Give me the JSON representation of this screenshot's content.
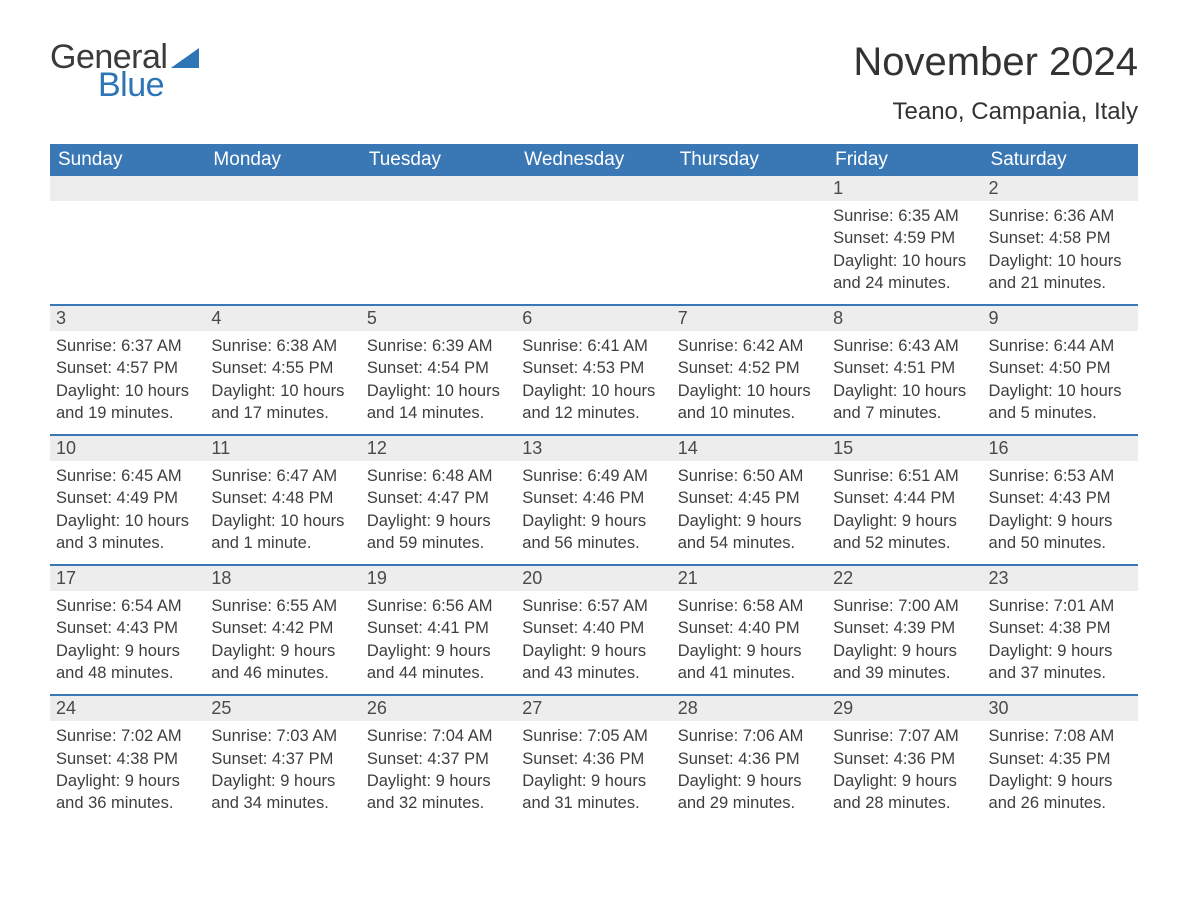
{
  "brand": {
    "word1": "General",
    "word2": "Blue",
    "color_text": "#3b3b3b",
    "color_accent": "#2e75b6"
  },
  "title": "November 2024",
  "location": "Teano, Campania, Italy",
  "theme": {
    "header_bg": "#3a78b5",
    "header_text": "#ffffff",
    "row_stripe": "#ededed",
    "row_border": "#3a78b5",
    "body_text": "#3e3e3e",
    "page_bg": "#ffffff",
    "title_fontsize": 40,
    "location_fontsize": 24,
    "dayheader_fontsize": 19,
    "cell_fontsize": 16.5
  },
  "day_names": [
    "Sunday",
    "Monday",
    "Tuesday",
    "Wednesday",
    "Thursday",
    "Friday",
    "Saturday"
  ],
  "weeks": [
    [
      {
        "empty": true
      },
      {
        "empty": true
      },
      {
        "empty": true
      },
      {
        "empty": true
      },
      {
        "empty": true
      },
      {
        "n": "1",
        "sunrise": "Sunrise: 6:35 AM",
        "sunset": "Sunset: 4:59 PM",
        "dl1": "Daylight: 10 hours",
        "dl2": "and 24 minutes."
      },
      {
        "n": "2",
        "sunrise": "Sunrise: 6:36 AM",
        "sunset": "Sunset: 4:58 PM",
        "dl1": "Daylight: 10 hours",
        "dl2": "and 21 minutes."
      }
    ],
    [
      {
        "n": "3",
        "sunrise": "Sunrise: 6:37 AM",
        "sunset": "Sunset: 4:57 PM",
        "dl1": "Daylight: 10 hours",
        "dl2": "and 19 minutes."
      },
      {
        "n": "4",
        "sunrise": "Sunrise: 6:38 AM",
        "sunset": "Sunset: 4:55 PM",
        "dl1": "Daylight: 10 hours",
        "dl2": "and 17 minutes."
      },
      {
        "n": "5",
        "sunrise": "Sunrise: 6:39 AM",
        "sunset": "Sunset: 4:54 PM",
        "dl1": "Daylight: 10 hours",
        "dl2": "and 14 minutes."
      },
      {
        "n": "6",
        "sunrise": "Sunrise: 6:41 AM",
        "sunset": "Sunset: 4:53 PM",
        "dl1": "Daylight: 10 hours",
        "dl2": "and 12 minutes."
      },
      {
        "n": "7",
        "sunrise": "Sunrise: 6:42 AM",
        "sunset": "Sunset: 4:52 PM",
        "dl1": "Daylight: 10 hours",
        "dl2": "and 10 minutes."
      },
      {
        "n": "8",
        "sunrise": "Sunrise: 6:43 AM",
        "sunset": "Sunset: 4:51 PM",
        "dl1": "Daylight: 10 hours",
        "dl2": "and 7 minutes."
      },
      {
        "n": "9",
        "sunrise": "Sunrise: 6:44 AM",
        "sunset": "Sunset: 4:50 PM",
        "dl1": "Daylight: 10 hours",
        "dl2": "and 5 minutes."
      }
    ],
    [
      {
        "n": "10",
        "sunrise": "Sunrise: 6:45 AM",
        "sunset": "Sunset: 4:49 PM",
        "dl1": "Daylight: 10 hours",
        "dl2": "and 3 minutes."
      },
      {
        "n": "11",
        "sunrise": "Sunrise: 6:47 AM",
        "sunset": "Sunset: 4:48 PM",
        "dl1": "Daylight: 10 hours",
        "dl2": "and 1 minute."
      },
      {
        "n": "12",
        "sunrise": "Sunrise: 6:48 AM",
        "sunset": "Sunset: 4:47 PM",
        "dl1": "Daylight: 9 hours",
        "dl2": "and 59 minutes."
      },
      {
        "n": "13",
        "sunrise": "Sunrise: 6:49 AM",
        "sunset": "Sunset: 4:46 PM",
        "dl1": "Daylight: 9 hours",
        "dl2": "and 56 minutes."
      },
      {
        "n": "14",
        "sunrise": "Sunrise: 6:50 AM",
        "sunset": "Sunset: 4:45 PM",
        "dl1": "Daylight: 9 hours",
        "dl2": "and 54 minutes."
      },
      {
        "n": "15",
        "sunrise": "Sunrise: 6:51 AM",
        "sunset": "Sunset: 4:44 PM",
        "dl1": "Daylight: 9 hours",
        "dl2": "and 52 minutes."
      },
      {
        "n": "16",
        "sunrise": "Sunrise: 6:53 AM",
        "sunset": "Sunset: 4:43 PM",
        "dl1": "Daylight: 9 hours",
        "dl2": "and 50 minutes."
      }
    ],
    [
      {
        "n": "17",
        "sunrise": "Sunrise: 6:54 AM",
        "sunset": "Sunset: 4:43 PM",
        "dl1": "Daylight: 9 hours",
        "dl2": "and 48 minutes."
      },
      {
        "n": "18",
        "sunrise": "Sunrise: 6:55 AM",
        "sunset": "Sunset: 4:42 PM",
        "dl1": "Daylight: 9 hours",
        "dl2": "and 46 minutes."
      },
      {
        "n": "19",
        "sunrise": "Sunrise: 6:56 AM",
        "sunset": "Sunset: 4:41 PM",
        "dl1": "Daylight: 9 hours",
        "dl2": "and 44 minutes."
      },
      {
        "n": "20",
        "sunrise": "Sunrise: 6:57 AM",
        "sunset": "Sunset: 4:40 PM",
        "dl1": "Daylight: 9 hours",
        "dl2": "and 43 minutes."
      },
      {
        "n": "21",
        "sunrise": "Sunrise: 6:58 AM",
        "sunset": "Sunset: 4:40 PM",
        "dl1": "Daylight: 9 hours",
        "dl2": "and 41 minutes."
      },
      {
        "n": "22",
        "sunrise": "Sunrise: 7:00 AM",
        "sunset": "Sunset: 4:39 PM",
        "dl1": "Daylight: 9 hours",
        "dl2": "and 39 minutes."
      },
      {
        "n": "23",
        "sunrise": "Sunrise: 7:01 AM",
        "sunset": "Sunset: 4:38 PM",
        "dl1": "Daylight: 9 hours",
        "dl2": "and 37 minutes."
      }
    ],
    [
      {
        "n": "24",
        "sunrise": "Sunrise: 7:02 AM",
        "sunset": "Sunset: 4:38 PM",
        "dl1": "Daylight: 9 hours",
        "dl2": "and 36 minutes."
      },
      {
        "n": "25",
        "sunrise": "Sunrise: 7:03 AM",
        "sunset": "Sunset: 4:37 PM",
        "dl1": "Daylight: 9 hours",
        "dl2": "and 34 minutes."
      },
      {
        "n": "26",
        "sunrise": "Sunrise: 7:04 AM",
        "sunset": "Sunset: 4:37 PM",
        "dl1": "Daylight: 9 hours",
        "dl2": "and 32 minutes."
      },
      {
        "n": "27",
        "sunrise": "Sunrise: 7:05 AM",
        "sunset": "Sunset: 4:36 PM",
        "dl1": "Daylight: 9 hours",
        "dl2": "and 31 minutes."
      },
      {
        "n": "28",
        "sunrise": "Sunrise: 7:06 AM",
        "sunset": "Sunset: 4:36 PM",
        "dl1": "Daylight: 9 hours",
        "dl2": "and 29 minutes."
      },
      {
        "n": "29",
        "sunrise": "Sunrise: 7:07 AM",
        "sunset": "Sunset: 4:36 PM",
        "dl1": "Daylight: 9 hours",
        "dl2": "and 28 minutes."
      },
      {
        "n": "30",
        "sunrise": "Sunrise: 7:08 AM",
        "sunset": "Sunset: 4:35 PM",
        "dl1": "Daylight: 9 hours",
        "dl2": "and 26 minutes."
      }
    ]
  ]
}
